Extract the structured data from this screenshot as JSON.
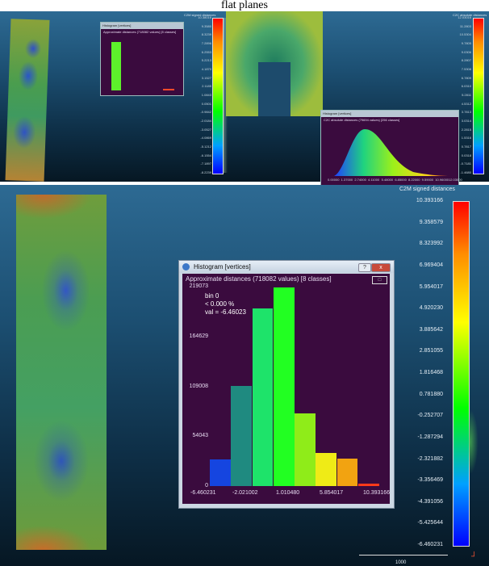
{
  "page": {
    "top_title": "flat planes"
  },
  "colors": {
    "panel_top": "#2d6a93",
    "panel_bottom": "#061723",
    "histogram_bg": "#3a0b3e"
  },
  "top_view": {
    "small_hist_title": "Histogram [vertices]",
    "small_hist_subtitle": "Approximate distances (718082 values) [8 classes]",
    "left_scale_title": "C2M signed distances",
    "left_scale_ticks": [
      "10.38016",
      "9.3580",
      "8.3239",
      "7.2896",
      "6.2553",
      "5.2213",
      "4.1870",
      "3.1527",
      "2.1185",
      "1.0843",
      "0.0501",
      "-0.9842",
      "-2.0184",
      "-3.0527",
      "-4.0869",
      "-5.1212",
      "-6.1554",
      "-7.1897",
      "-8.2239"
    ],
    "right_scale_title": "C2C absolute distances",
    "right_scale_ticks": [
      "12.03016",
      "11.2803",
      "10.5304",
      "9.7805",
      "9.0306",
      "8.2807",
      "7.5308",
      "6.7809",
      "6.0310",
      "5.2811",
      "4.5312",
      "3.7813",
      "3.0314",
      "2.2815",
      "1.5316",
      "0.7817",
      "0.0318",
      "-0.7181",
      "-1.4680"
    ],
    "gauss_hist_title": "Histogram [vertices]",
    "gauss_hist_subtitle": "C2C absolute distances (79694 values) [256 classes]",
    "gauss_x_ticks": [
      "0.00000",
      "1.37000",
      "2.74000",
      "4.11000",
      "5.48000",
      "6.85000",
      "8.22000",
      "9.59000",
      "10.96000",
      "12.03000"
    ]
  },
  "histogram_window": {
    "title": "Histogram [vertices]",
    "subtitle": "Approximate distances (718082 values) [8 classes]",
    "tooltip": [
      "bin 0",
      "< 0.000 %",
      "val = -6.46023"
    ],
    "close_label": "x",
    "help_label": "?",
    "export_label": "□",
    "chart_data": {
      "type": "bar",
      "title": "Approximate distances (718082 values) [8 classes]",
      "xlabel": "",
      "ylabel": "",
      "ylim": [
        0,
        219073
      ],
      "xlim": [
        -6.460231,
        10.393166
      ],
      "y_ticks": [
        "219073",
        "164629",
        "109008",
        "54043",
        "0"
      ],
      "x_ticks": [
        "-6.460231",
        "-2.021002",
        "1.010480",
        "5.854017",
        "10.393166"
      ],
      "values": [
        29000,
        110000,
        195000,
        218000,
        80000,
        36000,
        30000,
        3000
      ],
      "colors": [
        "#1545e0",
        "#1f8a80",
        "#1ee36a",
        "#22ff22",
        "#8fec19",
        "#efeb16",
        "#f2a311",
        "#ff3a1a"
      ]
    }
  },
  "big_scale": {
    "title": "C2M signed distances",
    "ticks": [
      "10.393166",
      "9.358579",
      "8.323992",
      "6.969404",
      "5.954017",
      "4.920230",
      "3.885642",
      "2.851055",
      "1.816468",
      "0.781880",
      "-0.252707",
      "-1.287294",
      "-2.321882",
      "-3.356469",
      "-4.391056",
      "-5.425644",
      "-6.460231"
    ],
    "scale_label": "1000"
  }
}
